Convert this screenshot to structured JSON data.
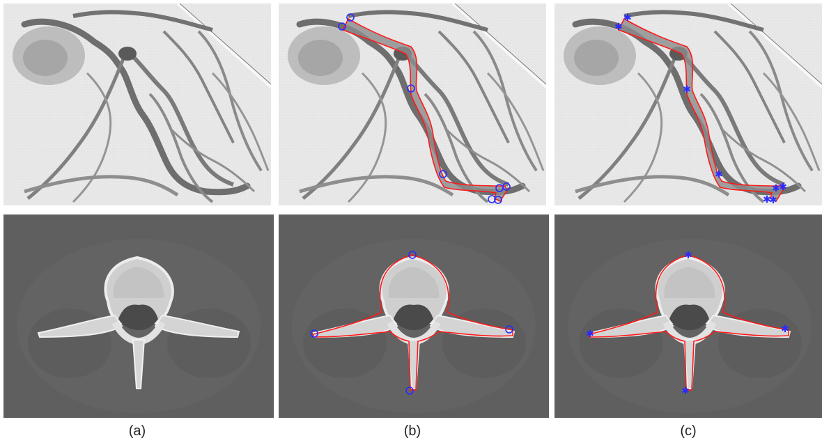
{
  "figure": {
    "captions": [
      "(a)",
      "(b)",
      "(c)"
    ]
  },
  "panels": {
    "angio_original": "Coronary angiogram (original)",
    "angio_segmented_seed_circles": "Coronary angiogram with vessel segmentation and circle seed points",
    "angio_segmented_seed_stars": "Coronary angiogram with vessel segmentation and star seed points",
    "ct_original": "Axial CT vertebra (original)",
    "ct_segmented_seed_circles": "Axial CT vertebra with contour and circle seed points",
    "ct_segmented_seed_stars": "Axial CT vertebra with contour and star seed points"
  },
  "colors": {
    "contour": "#ff1a1a",
    "seed": "#2b2bff",
    "vessel_fill": "#8c8c8c",
    "angio_bg": "#e6e6e6",
    "ct_bg": "#5e5e5e",
    "bone": "#d8d8d8"
  },
  "icons": {
    "seed_b": "circle-marker",
    "seed_c": "star-marker"
  }
}
